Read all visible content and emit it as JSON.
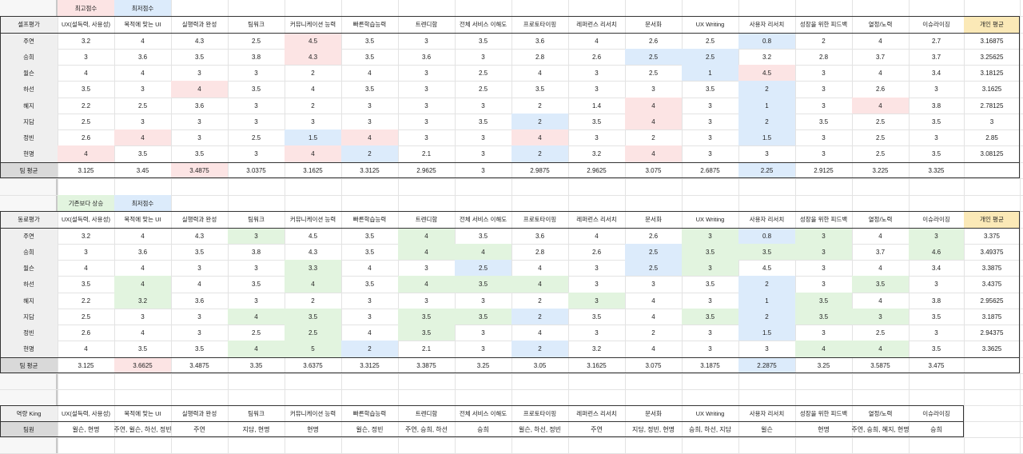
{
  "colors": {
    "high": "#fce4e4",
    "low": "#dcebfb",
    "up": "#e2f4df",
    "avg_col": "#fbe9b7",
    "label_col": "#efefef"
  },
  "cols": [
    "UX(설득력, 사용성)",
    "목적에 맞는 UI",
    "실행력과 완성",
    "팀워크",
    "커뮤니케이션 능력",
    "빠른학습능력",
    "트렌디함",
    "전체 서비스 이해도",
    "프로토타이핑",
    "레퍼런스 리서치",
    "문서화",
    "UX Writing",
    "사용자 리서치",
    "성장을 위한 피드백",
    "열정/노력",
    "이슈라이징"
  ],
  "names": [
    "주연",
    "승희",
    "윌슨",
    "하선",
    "혜지",
    "지담",
    "정빈",
    "현명"
  ],
  "self": {
    "legend_high": "최고점수",
    "legend_low": "최저점수",
    "title": "셀프평가",
    "avg_header": "개인 평균",
    "avg_row_label": "팀 평균",
    "rows": [
      [
        "3.2",
        "4",
        "4.3",
        "2.5",
        "4.5",
        "3.5",
        "3",
        "3.5",
        "3.6",
        "4",
        "2.6",
        "2.5",
        "0.8",
        "2",
        "4",
        "2.7",
        "3.16875"
      ],
      [
        "3",
        "3.6",
        "3.5",
        "3.8",
        "4.3",
        "3.5",
        "3.6",
        "3",
        "2.8",
        "2.6",
        "2.5",
        "2.5",
        "3.2",
        "2.8",
        "3.7",
        "3.7",
        "3.25625"
      ],
      [
        "4",
        "4",
        "3",
        "3",
        "2",
        "4",
        "3",
        "2.5",
        "4",
        "3",
        "2.5",
        "1",
        "4.5",
        "3",
        "4",
        "3.4",
        "3.18125"
      ],
      [
        "3.5",
        "3",
        "4",
        "3.5",
        "4",
        "3.5",
        "3",
        "2.5",
        "3.5",
        "3",
        "3",
        "3.5",
        "2",
        "3",
        "2.6",
        "3",
        "3.1625"
      ],
      [
        "2.2",
        "2.5",
        "3.6",
        "3",
        "2",
        "3",
        "3",
        "3",
        "2",
        "1.4",
        "4",
        "3",
        "1",
        "3",
        "4",
        "3.8",
        "2.78125"
      ],
      [
        "2.5",
        "3",
        "3",
        "3",
        "3",
        "3",
        "3",
        "3.5",
        "2",
        "3.5",
        "4",
        "3",
        "2",
        "3.5",
        "2.5",
        "3.5",
        "3"
      ],
      [
        "2.6",
        "4",
        "3",
        "2.5",
        "1.5",
        "4",
        "3",
        "3",
        "4",
        "3",
        "2",
        "3",
        "1.5",
        "3",
        "2.5",
        "3",
        "2.85"
      ],
      [
        "4",
        "3.5",
        "3.5",
        "3",
        "4",
        "2",
        "2.1",
        "3",
        "2",
        "3.2",
        "4",
        "3",
        "3",
        "3",
        "2.5",
        "3.5",
        "3.08125"
      ]
    ],
    "avg": [
      "3.125",
      "3.45",
      "3.4875",
      "3.0375",
      "3.1625",
      "3.3125",
      "2.9625",
      "3",
      "2.9875",
      "2.9625",
      "3.075",
      "2.6875",
      "2.25",
      "2.9125",
      "3.225",
      "3.325",
      ""
    ],
    "hl": [
      [
        "",
        "",
        "",
        "",
        "high",
        "",
        "",
        "",
        "",
        "",
        "",
        "",
        "low",
        "",
        "",
        ""
      ],
      [
        "",
        "",
        "",
        "",
        "high",
        "",
        "",
        "",
        "",
        "",
        "low",
        "low",
        "",
        "",
        "",
        ""
      ],
      [
        "",
        "",
        "",
        "",
        "",
        "",
        "",
        "",
        "",
        "",
        "",
        "low",
        "high",
        "",
        "",
        ""
      ],
      [
        "",
        "",
        "high",
        "",
        "",
        "",
        "",
        "",
        "",
        "",
        "",
        "",
        "low",
        "",
        "",
        ""
      ],
      [
        "",
        "",
        "",
        "",
        "",
        "",
        "",
        "",
        "",
        "",
        "high",
        "",
        "low",
        "",
        "high",
        ""
      ],
      [
        "",
        "",
        "",
        "",
        "",
        "",
        "",
        "",
        "low",
        "",
        "high",
        "",
        "low",
        "",
        "",
        ""
      ],
      [
        "",
        "high",
        "",
        "",
        "low",
        "high",
        "",
        "",
        "high",
        "",
        "",
        "",
        "low",
        "",
        "",
        ""
      ],
      [
        "high",
        "",
        "",
        "",
        "high",
        "low",
        "",
        "",
        "low",
        "",
        "high",
        "",
        "",
        "",
        "",
        ""
      ]
    ],
    "avg_hl": [
      "",
      "",
      "high",
      "",
      "",
      "",
      "",
      "",
      "",
      "",
      "",
      "",
      "low",
      "",
      "",
      "",
      ""
    ]
  },
  "peer": {
    "legend_up": "기존보다 상승",
    "legend_low": "최저점수",
    "title": "동료평가",
    "avg_header": "개인 평균",
    "avg_row_label": "팀 평균",
    "rows": [
      [
        "3.2",
        "4",
        "4.3",
        "3",
        "4.5",
        "3.5",
        "4",
        "3.5",
        "3.6",
        "4",
        "2.6",
        "3",
        "0.8",
        "3",
        "4",
        "3",
        "3.375"
      ],
      [
        "3",
        "3.6",
        "3.5",
        "3.8",
        "4.3",
        "3.5",
        "4",
        "4",
        "2.8",
        "2.6",
        "2.5",
        "3.5",
        "3.5",
        "3",
        "3.7",
        "4.6",
        "3.49375"
      ],
      [
        "4",
        "4",
        "3",
        "3",
        "3.3",
        "4",
        "3",
        "2.5",
        "4",
        "3",
        "2.5",
        "3",
        "4.5",
        "3",
        "4",
        "3.4",
        "3.3875"
      ],
      [
        "3.5",
        "4",
        "4",
        "3.5",
        "4",
        "3.5",
        "4",
        "3.5",
        "4",
        "3",
        "3",
        "3.5",
        "2",
        "3",
        "3.5",
        "3",
        "3.4375"
      ],
      [
        "2.2",
        "3.2",
        "3.6",
        "3",
        "2",
        "3",
        "3",
        "3",
        "2",
        "3",
        "4",
        "3",
        "1",
        "3.5",
        "4",
        "3.8",
        "2.95625"
      ],
      [
        "2.5",
        "3",
        "3",
        "4",
        "3.5",
        "3",
        "3.5",
        "3.5",
        "2",
        "3.5",
        "4",
        "3.5",
        "2",
        "3.5",
        "3",
        "3.5",
        "3.1875"
      ],
      [
        "2.6",
        "4",
        "3",
        "2.5",
        "2.5",
        "4",
        "3.5",
        "3",
        "4",
        "3",
        "2",
        "3",
        "1.5",
        "3",
        "2.5",
        "3",
        "2.94375"
      ],
      [
        "4",
        "3.5",
        "3.5",
        "4",
        "5",
        "2",
        "2.1",
        "3",
        "2",
        "3.2",
        "4",
        "3",
        "3",
        "4",
        "4",
        "3.5",
        "3.3625"
      ]
    ],
    "avg": [
      "3.125",
      "3.6625",
      "3.4875",
      "3.35",
      "3.6375",
      "3.3125",
      "3.3875",
      "3.25",
      "3.05",
      "3.1625",
      "3.075",
      "3.1875",
      "2.2875",
      "3.25",
      "3.5875",
      "3.475",
      ""
    ],
    "hl": [
      [
        "",
        "",
        "",
        "up",
        "",
        "",
        "up",
        "",
        "",
        "",
        "",
        "up",
        "low",
        "up",
        "",
        "up"
      ],
      [
        "",
        "",
        "",
        "",
        "",
        "",
        "up",
        "up",
        "",
        "",
        "low",
        "up",
        "up",
        "up",
        "",
        "up"
      ],
      [
        "",
        "",
        "",
        "",
        "up",
        "",
        "",
        "low",
        "",
        "",
        "low",
        "up",
        "",
        "",
        "",
        ""
      ],
      [
        "",
        "up",
        "",
        "",
        "up",
        "",
        "up",
        "up",
        "up",
        "",
        "",
        "",
        "low",
        "",
        "up",
        ""
      ],
      [
        "",
        "up",
        "",
        "",
        "",
        "",
        "",
        "",
        "",
        "up",
        "",
        "",
        "low",
        "up",
        "",
        ""
      ],
      [
        "",
        "",
        "",
        "up",
        "up",
        "",
        "up",
        "up",
        "low",
        "",
        "",
        "up",
        "low",
        "up",
        "up",
        ""
      ],
      [
        "",
        "",
        "",
        "",
        "up",
        "",
        "up",
        "",
        "",
        "",
        "",
        "",
        "low",
        "",
        "",
        ""
      ],
      [
        "",
        "",
        "",
        "up",
        "up",
        "low",
        "",
        "",
        "low",
        "",
        "",
        "",
        "",
        "up",
        "up",
        ""
      ]
    ],
    "avg_hl": [
      "",
      "high",
      "",
      "",
      "",
      "",
      "",
      "",
      "",
      "",
      "",
      "",
      "low",
      "",
      "",
      "",
      ""
    ]
  },
  "king": {
    "title": "역량 King",
    "row_label": "팀원",
    "values": [
      "윌슨, 현명",
      "주연, 윌슨, 하선, 정빈",
      "주연",
      "지담, 현명",
      "현명",
      "윌슨, 정빈",
      "주연, 승희, 하선",
      "승희",
      "윌슨, 하선, 정빈",
      "주연",
      "지담, 정빈, 현명",
      "승희, 하선, 지담",
      "윌슨",
      "현명",
      "주연, 승희, 혜지, 현명",
      "승희"
    ]
  }
}
